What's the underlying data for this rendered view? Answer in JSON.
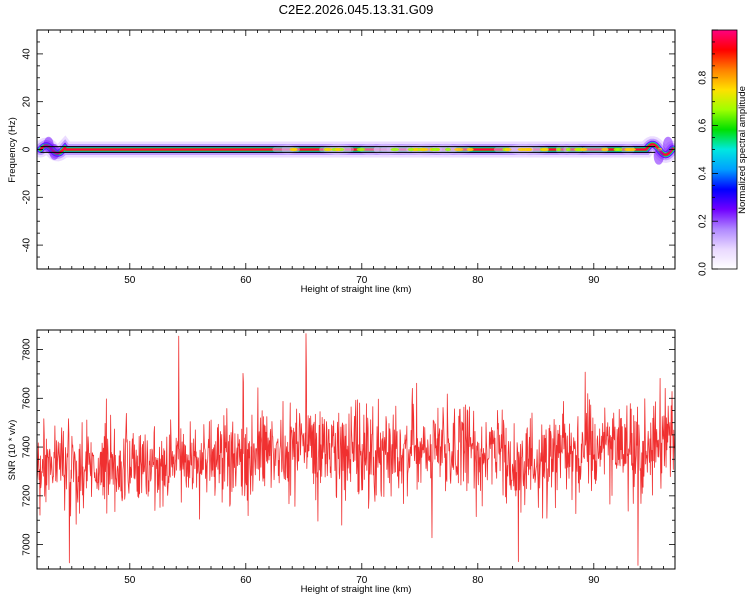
{
  "title": "C2E2.2026.045.13.31.G09",
  "chart_data": [
    {
      "type": "heatmap",
      "panel": "spectrogram",
      "xlabel": "Height of straight line (km)",
      "ylabel": "Frequency (Hz)",
      "xlim": [
        42,
        97
      ],
      "ylim": [
        -50,
        50
      ],
      "xticks": [
        "50",
        "60",
        "70",
        "80",
        "90"
      ],
      "yticks": [
        "-40",
        "-20",
        "0",
        "20",
        "40"
      ],
      "colorbar": {
        "label": "Normalized spectral amplitude",
        "range": [
          0,
          1
        ],
        "ticks": [
          "0.0",
          "0.2",
          "0.4",
          "0.6",
          "0.8"
        ]
      },
      "trace": {
        "description": "narrow high-amplitude band near 0 Hz",
        "x_start": 42.3,
        "x_end": 96.8,
        "center_hz": 0,
        "wiggle_start": {
          "x": [
            42.3,
            44.5
          ],
          "hz": [
            2,
            -2
          ]
        },
        "wiggle_end": {
          "x": [
            94.5,
            96.8
          ],
          "hz": [
            1,
            -3
          ]
        }
      },
      "reference_lines_hz": [
        -1.2,
        1.2
      ]
    },
    {
      "type": "line",
      "panel": "snr",
      "xlabel": "Height of straight line (km)",
      "ylabel": "SNR (10 * v/v)",
      "xlim": [
        42,
        97
      ],
      "ylim": [
        6900,
        7880
      ],
      "xticks": [
        "50",
        "60",
        "70",
        "80",
        "90"
      ],
      "yticks": [
        "7000",
        "7200",
        "7400",
        "7600",
        "7800"
      ],
      "series": [
        {
          "name": "SNR",
          "color": "#f03030",
          "samples": 1500,
          "mean_profile": {
            "x": [
              42,
              50,
              60,
              65,
              70,
              80,
              84,
              90,
              97
            ],
            "y": [
              7320,
              7320,
              7360,
              7400,
              7390,
              7390,
              7330,
              7400,
              7420
            ]
          },
          "noise_std": 90,
          "spikes": [
            {
              "x": 54.2,
              "y": 7855
            },
            {
              "x": 65.2,
              "y": 7865
            },
            {
              "x": 44.8,
              "y": 6925
            },
            {
              "x": 93.8,
              "y": 6915
            },
            {
              "x": 83.5,
              "y": 6930
            }
          ]
        }
      ]
    }
  ],
  "colors": {
    "axis": "#000000",
    "snr_line": "#f03030",
    "colormap": [
      "#ffffff",
      "#e9d8ff",
      "#b088ff",
      "#7000ff",
      "#0000ff",
      "#00a0ff",
      "#00e8e0",
      "#00e000",
      "#a0ff00",
      "#ffe000",
      "#ff8000",
      "#ff0000",
      "#ff0080"
    ]
  }
}
